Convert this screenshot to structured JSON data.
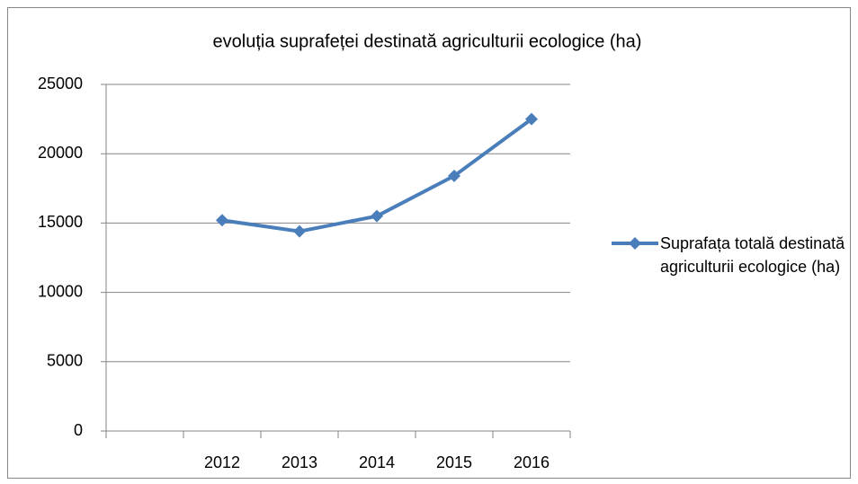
{
  "chart_data": {
    "type": "line",
    "title": "evoluția suprafeței destinată agriculturii ecologice (ha)",
    "categories": [
      null,
      "2012",
      "2013",
      "2014",
      "2015",
      "2016"
    ],
    "series": [
      {
        "name": "Suprafața totală destinată agriculturii ecologice (ha)",
        "color": "#4a7ebb",
        "values": [
          null,
          15200,
          14400,
          15500,
          18400,
          22500
        ]
      }
    ],
    "ylim": [
      0,
      25000
    ],
    "yticks": [
      0,
      5000,
      10000,
      15000,
      20000,
      25000
    ],
    "grid": true,
    "legend": "right"
  }
}
